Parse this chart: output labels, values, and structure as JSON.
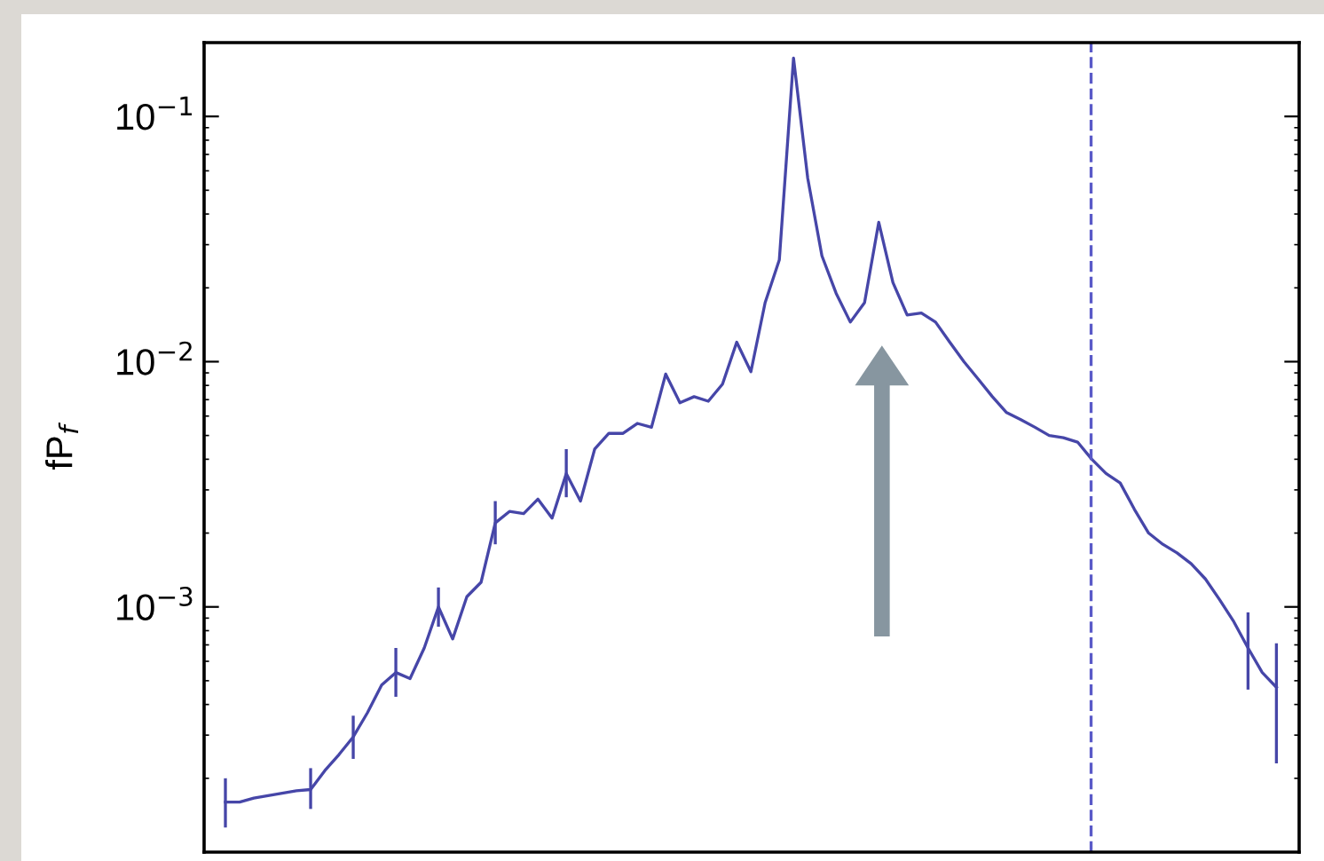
{
  "chart_data": {
    "type": "line",
    "ylabel": "fP$_{f}$",
    "categories": [
      null,
      null,
      null,
      null,
      null,
      null,
      null,
      null,
      null,
      null,
      null,
      null,
      null,
      null,
      null,
      null,
      null,
      null,
      null,
      null,
      null,
      null,
      null,
      null,
      null,
      null,
      null,
      null,
      null,
      null,
      null,
      null,
      null,
      null,
      null,
      null,
      null,
      null,
      null,
      null,
      null,
      null,
      null,
      null,
      null,
      null,
      null,
      null,
      null,
      null,
      null,
      null,
      null,
      null,
      null,
      null,
      null,
      null,
      null,
      null,
      null,
      null,
      null,
      null,
      null,
      null,
      null,
      null,
      null,
      null,
      null,
      null,
      null,
      null,
      null
    ],
    "series": [
      {
        "color": "#4646a8",
        "values": [
          0.00016,
          0.00016,
          0.000166,
          0.00017,
          0.000174,
          0.000178,
          0.00018,
          0.000215,
          0.00025,
          0.000295,
          0.00037,
          0.00048,
          0.00054,
          0.00051,
          0.00068,
          0.001,
          0.00074,
          0.0011,
          0.00126,
          0.0022,
          0.00245,
          0.0024,
          0.00275,
          0.0023,
          0.0035,
          0.0027,
          0.0044,
          0.0051,
          0.0051,
          0.0056,
          0.0054,
          0.0089,
          0.0068,
          0.0072,
          0.0069,
          0.0081,
          0.012,
          0.0091,
          0.0174,
          0.026,
          0.173,
          0.056,
          0.027,
          0.019,
          0.0145,
          0.0174,
          0.037,
          0.021,
          0.0155,
          0.0158,
          0.0145,
          0.012,
          0.01,
          0.0085,
          0.0072,
          0.0062,
          0.0058,
          0.0054,
          0.005,
          0.0049,
          0.0047,
          0.004,
          0.0035,
          0.0032,
          0.0025,
          0.002,
          0.0018,
          0.00166,
          0.0015,
          0.0013,
          0.00107,
          0.00087,
          0.00068,
          0.00054,
          0.00047
        ],
        "errors": [
          [
            0.000126,
            0.0002
          ],
          null,
          null,
          null,
          null,
          null,
          [
            0.00015,
            0.00022
          ],
          null,
          null,
          [
            0.00024,
            0.00036
          ],
          null,
          null,
          [
            0.00043,
            0.00068
          ],
          null,
          null,
          [
            0.00083,
            0.0012
          ],
          null,
          null,
          null,
          [
            0.0018,
            0.0027
          ],
          null,
          null,
          null,
          null,
          [
            0.0028,
            0.0044
          ],
          null,
          null,
          null,
          null,
          null,
          null,
          null,
          null,
          null,
          null,
          null,
          null,
          null,
          null,
          null,
          null,
          null,
          null,
          null,
          null,
          null,
          null,
          null,
          null,
          null,
          null,
          null,
          null,
          null,
          null,
          null,
          null,
          null,
          null,
          null,
          null,
          null,
          null,
          null,
          null,
          null,
          null,
          null,
          null,
          null,
          null,
          null,
          [
            0.00046,
            0.00095
          ],
          null,
          [
            0.00023,
            0.00071
          ]
        ]
      }
    ],
    "log": "y",
    "ylim": [
      0.0001,
      0.2
    ],
    "yticks": [
      {
        "value": 0.1,
        "label": "10$^{−1}$"
      },
      {
        "value": 0.01,
        "label": "10$^{−2}$"
      },
      {
        "value": 0.001,
        "label": "10$^{−3}$"
      }
    ],
    "tick_labels": "y"
  }
}
